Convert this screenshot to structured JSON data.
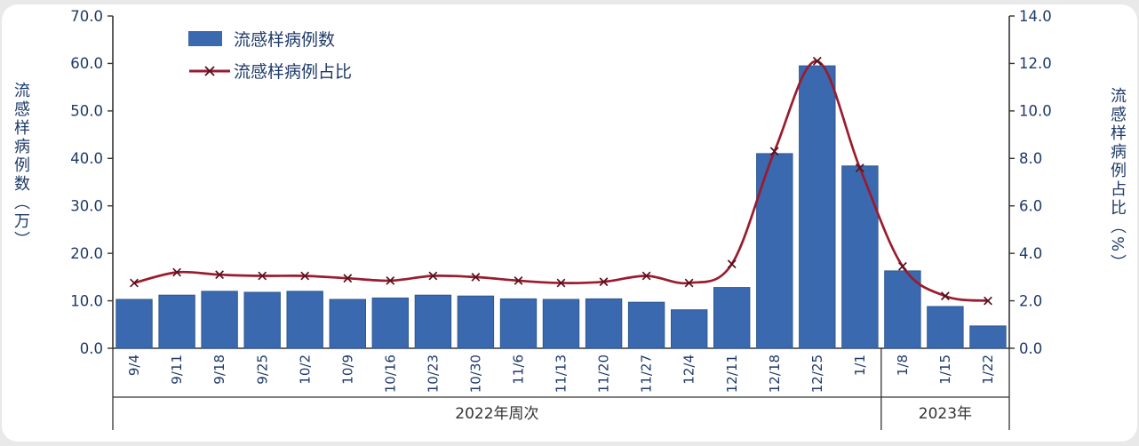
{
  "legend": {
    "bar_label": "流感样病例数",
    "line_label": "流感样病例占比"
  },
  "chart_data": {
    "type": "bar+line",
    "categories": [
      "9/4",
      "9/11",
      "9/18",
      "9/25",
      "10/2",
      "10/9",
      "10/16",
      "10/23",
      "10/30",
      "11/6",
      "11/13",
      "11/20",
      "11/27",
      "12/4",
      "12/11",
      "12/18",
      "12/25",
      "1/1",
      "1/8",
      "1/15",
      "1/22"
    ],
    "series": [
      {
        "name": "流感样病例数",
        "type": "bar",
        "axis": "left",
        "color": "#3b69af",
        "border_color": "#2e578f",
        "values": [
          10.3,
          11.2,
          12.0,
          11.8,
          12.0,
          10.3,
          10.6,
          11.2,
          11.0,
          10.4,
          10.3,
          10.4,
          9.7,
          8.1,
          12.8,
          41.0,
          59.5,
          38.4,
          16.3,
          8.8,
          4.7
        ]
      },
      {
        "name": "流感样病例占比",
        "type": "line",
        "axis": "right",
        "color": "#9a1b2e",
        "marker": "x",
        "marker_color": "#56101d",
        "values": [
          2.75,
          3.2,
          3.1,
          3.05,
          3.05,
          2.95,
          2.85,
          3.05,
          3.0,
          2.85,
          2.75,
          2.8,
          3.05,
          2.75,
          3.55,
          8.3,
          12.1,
          7.6,
          3.45,
          2.2,
          2.0
        ]
      }
    ],
    "left_axis": {
      "label": "流感样病例数（万）",
      "min": 0,
      "max": 70,
      "step": 10,
      "decimals": 1
    },
    "right_axis": {
      "label": "流感样病例占比（%）",
      "min": 0,
      "max": 14,
      "step": 2,
      "decimals": 1
    },
    "x_groups": [
      {
        "label": "2022年周次",
        "span": 18
      },
      {
        "label": "2023年",
        "span": 3
      }
    ],
    "style": {
      "text_color": "#1f3a68",
      "group_label_color": "#333333",
      "axis_color": "#333333",
      "grid": "off",
      "legend_position": "top-left-inside"
    }
  }
}
